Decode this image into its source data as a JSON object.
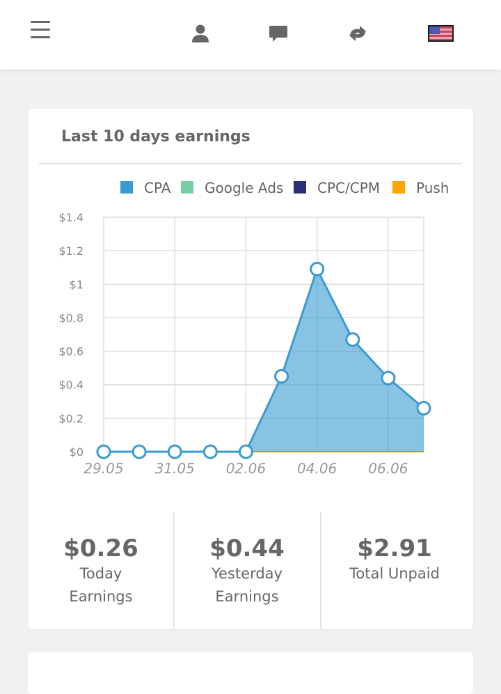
{
  "header": {
    "icons": [
      "menu-icon",
      "user-icon",
      "chat-icon",
      "swap-icon",
      "flag-icon"
    ]
  },
  "card": {
    "title": "Last 10 days earnings"
  },
  "chart_data": {
    "type": "area",
    "title": "Last 10 days earnings",
    "x": [
      "29.05",
      "30.05",
      "31.05",
      "01.06",
      "02.06",
      "03.06",
      "04.06",
      "05.06",
      "06.06",
      "07.06"
    ],
    "x_tick_labels": [
      "29.05",
      "31.05",
      "02.06",
      "04.06",
      "06.06"
    ],
    "y_tick_labels": [
      "$0",
      "$0.2",
      "$0.4",
      "$0.6",
      "$0.8",
      "$1",
      "$1.2",
      "$1.4"
    ],
    "ylim": [
      0,
      1.4
    ],
    "grid": true,
    "legend_position": "top-right",
    "series": [
      {
        "name": "CPA",
        "color": "#3a9bd2",
        "values": [
          0,
          0,
          0,
          0,
          0,
          0.45,
          1.09,
          0.67,
          0.44,
          0.26
        ]
      },
      {
        "name": "Google Ads",
        "color": "#76d0a4",
        "values": [
          0,
          0,
          0,
          0,
          0,
          0,
          0,
          0,
          0,
          0
        ]
      },
      {
        "name": "CPC/CPM",
        "color": "#2a2f7a",
        "values": [
          0,
          0,
          0,
          0,
          0,
          0,
          0,
          0,
          0,
          0
        ]
      },
      {
        "name": "Push",
        "color": "#ffa500",
        "values": [
          0,
          0,
          0,
          0,
          0,
          0,
          0,
          0,
          0,
          0
        ]
      }
    ]
  },
  "stats": {
    "today_value": "$0.26",
    "today_label": "Today Earnings",
    "yesterday_value": "$0.44",
    "yesterday_label": "Yesterday Earnings",
    "unpaid_value": "$2.91",
    "unpaid_label": "Total Unpaid"
  }
}
